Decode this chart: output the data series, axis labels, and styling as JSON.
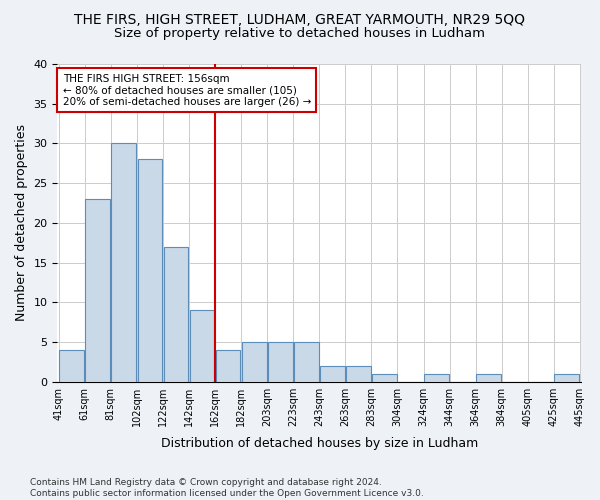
{
  "title": "THE FIRS, HIGH STREET, LUDHAM, GREAT YARMOUTH, NR29 5QQ",
  "subtitle": "Size of property relative to detached houses in Ludham",
  "xlabel": "Distribution of detached houses by size in Ludham",
  "ylabel": "Number of detached properties",
  "bar_values": [
    4,
    23,
    30,
    28,
    17,
    9,
    4,
    5,
    5,
    5,
    2,
    2,
    1,
    0,
    1,
    0,
    1,
    0,
    0,
    1
  ],
  "bar_labels": [
    "41sqm",
    "61sqm",
    "81sqm",
    "102sqm",
    "122sqm",
    "142sqm",
    "162sqm",
    "182sqm",
    "203sqm",
    "223sqm",
    "243sqm",
    "263sqm",
    "283sqm",
    "304sqm",
    "324sqm",
    "344sqm",
    "364sqm",
    "384sqm",
    "405sqm",
    "425sqm",
    "445sqm"
  ],
  "bar_color": "#c9d9e8",
  "bar_edge_color": "#5b8db8",
  "vline_x": 5.5,
  "vline_color": "#cc0000",
  "annotation_text": "THE FIRS HIGH STREET: 156sqm\n← 80% of detached houses are smaller (105)\n20% of semi-detached houses are larger (26) →",
  "annotation_box_color": "#cc0000",
  "ylim": [
    0,
    40
  ],
  "yticks": [
    0,
    5,
    10,
    15,
    20,
    25,
    30,
    35,
    40
  ],
  "footnote": "Contains HM Land Registry data © Crown copyright and database right 2024.\nContains public sector information licensed under the Open Government Licence v3.0.",
  "bg_color": "#eef2f7",
  "plot_bg_color": "#ffffff",
  "title_fontsize": 10,
  "subtitle_fontsize": 9.5,
  "xlabel_fontsize": 9,
  "ylabel_fontsize": 9
}
